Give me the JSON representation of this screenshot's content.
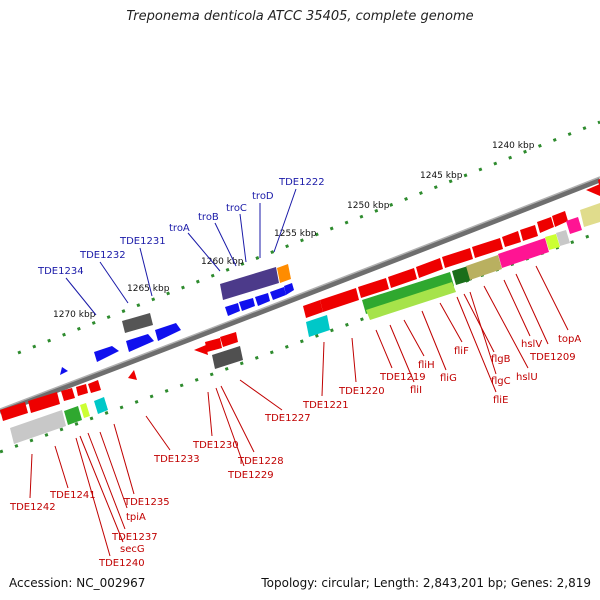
{
  "title": "Treponema denticola ATCC 35405, complete genome",
  "footer": {
    "accession": "Accession: NC_002967",
    "topology": "Topology: circular; Length: 2,843,201 bp; Genes: 2,819"
  },
  "colors": {
    "backbone": "#7a7a7a",
    "forward_gene": "#ee0000",
    "reverse_gene": "#1010ee",
    "label_forward": "#c00000",
    "label_reverse": "#1a1aa8",
    "tick": "#2e8b2e"
  },
  "scale_labels": [
    "1240 kbp",
    "1245 kbp",
    "1250 kbp",
    "1255 kbp",
    "1260 kbp",
    "1265 kbp",
    "1270 kbp"
  ],
  "upper_labels": [
    "TDE1234",
    "TDE1232",
    "TDE1231",
    "troA",
    "troB",
    "troC",
    "troD",
    "TDE1222"
  ],
  "lower_labels": [
    "TDE1242",
    "TDE1241",
    "TDE1235",
    "tpiA",
    "TDE1237",
    "secG",
    "TDE1240",
    "TDE1233",
    "TDE1230",
    "TDE1228",
    "TDE1229",
    "TDE1227",
    "TDE1221",
    "TDE1220",
    "TDE1219",
    "fliI",
    "fliH",
    "fliG",
    "fliF",
    "flgB",
    "flgC",
    "fliE",
    "hslV",
    "hslU",
    "TDE1209",
    "topA"
  ]
}
